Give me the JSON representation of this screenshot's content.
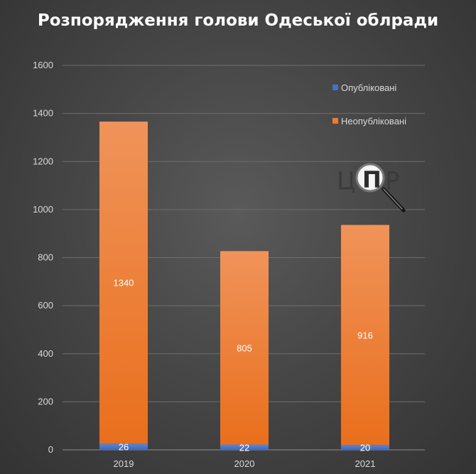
{
  "chart_data": {
    "type": "bar",
    "stacked": true,
    "title": "Розпорядження голови Одеської облради",
    "xlabel": "",
    "ylabel": "",
    "categories": [
      "2019",
      "2020",
      "2021"
    ],
    "series": [
      {
        "name": "Опубліковані",
        "values": [
          26,
          22,
          20
        ],
        "color": "#4472c4"
      },
      {
        "name": "Неопубліковані",
        "values": [
          1340,
          805,
          916
        ],
        "color": "#ed7d31"
      }
    ],
    "ylim": [
      0,
      1600
    ],
    "yticks": [
      0,
      200,
      400,
      600,
      800,
      1000,
      1200,
      1400,
      1600
    ],
    "grid": true,
    "legend_position": "top-right",
    "data_labels": true,
    "watermark_icon": "magnifier-icon",
    "watermark_letters": "ЦПР"
  }
}
